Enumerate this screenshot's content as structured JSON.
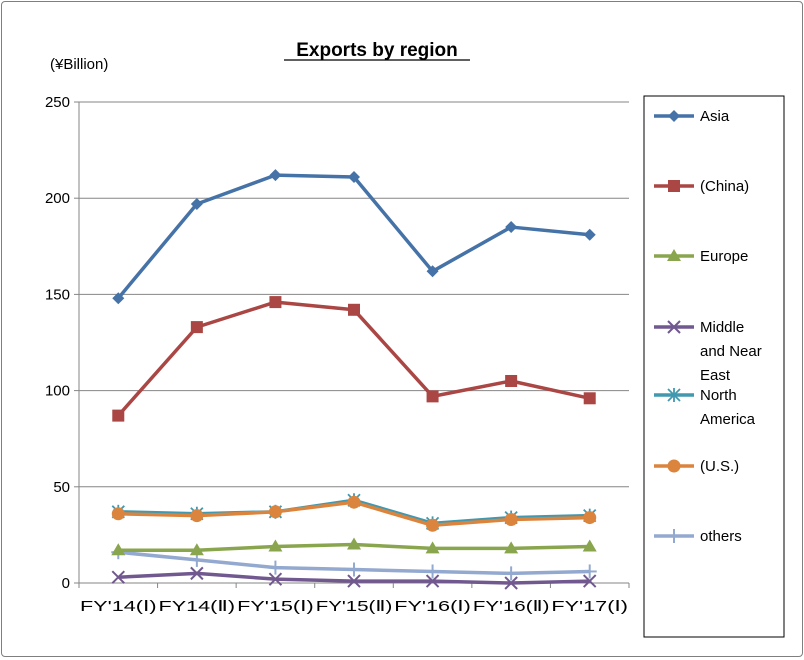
{
  "chart_data": {
    "type": "line",
    "title": "Exports by region",
    "ylabel": "(¥Billion)",
    "ylim": [
      0,
      250
    ],
    "yticks": [
      0,
      50,
      100,
      150,
      200,
      250
    ],
    "grid": true,
    "legend_position": "right",
    "categories": [
      "FY'14(Ⅰ)",
      "FY14(Ⅱ)",
      "FY'15(Ⅰ)",
      "FY'15(Ⅱ)",
      "FY'16(Ⅰ)",
      "FY'16(Ⅱ)",
      "FY'17(Ⅰ)"
    ],
    "series": [
      {
        "name": "Asia",
        "values": [
          148,
          197,
          212,
          211,
          162,
          185,
          181
        ],
        "color": "#4572a7",
        "marker": "diamond"
      },
      {
        "name": "(China)",
        "values": [
          87,
          133,
          146,
          142,
          97,
          105,
          96
        ],
        "color": "#aa4643",
        "marker": "square"
      },
      {
        "name": "Europe",
        "values": [
          17,
          17,
          19,
          20,
          18,
          18,
          19
        ],
        "color": "#89a54e",
        "marker": "triangle"
      },
      {
        "name": "Middle and Near East",
        "values": [
          3,
          5,
          2,
          1,
          1,
          0,
          1
        ],
        "color": "#71588f",
        "marker": "x"
      },
      {
        "name": "North America",
        "values": [
          37,
          36,
          37,
          43,
          31,
          34,
          35
        ],
        "color": "#4198af",
        "marker": "star"
      },
      {
        "name": "(U.S.)",
        "values": [
          36,
          35,
          37,
          42,
          30,
          33,
          34
        ],
        "color": "#db843d",
        "marker": "circle"
      },
      {
        "name": "others",
        "values": [
          16,
          12,
          8,
          7,
          6,
          5,
          6
        ],
        "color": "#93a9cf",
        "marker": "plus"
      }
    ]
  }
}
